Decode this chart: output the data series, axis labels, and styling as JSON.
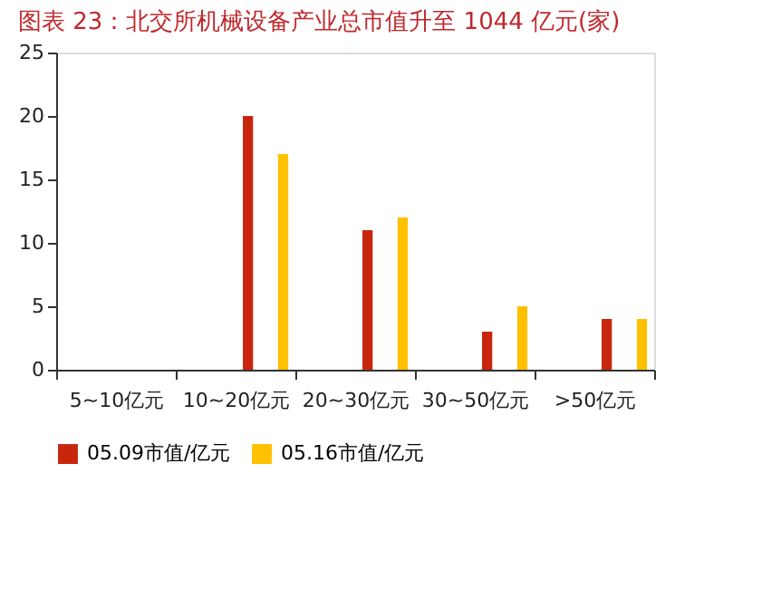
{
  "chart_data": {
    "type": "bar",
    "title": "图表 23：北交所机械设备产业总市值升至 1044 亿元(家)",
    "categories": [
      "5~10亿元",
      "10~20亿元",
      "20~30亿元",
      "30~50亿元",
      ">50亿元"
    ],
    "series": [
      {
        "name": "05.09市值/亿元",
        "color": "#c8260c",
        "values": [
          0,
          20,
          11,
          3,
          4
        ]
      },
      {
        "name": "05.16市值/亿元",
        "color": "#ffc000",
        "values": [
          0,
          17,
          12,
          5,
          4
        ]
      }
    ],
    "ylim": [
      0,
      25
    ],
    "yticks": [
      0,
      5,
      10,
      15,
      20,
      25
    ],
    "grid": false,
    "legend": "bottom"
  }
}
